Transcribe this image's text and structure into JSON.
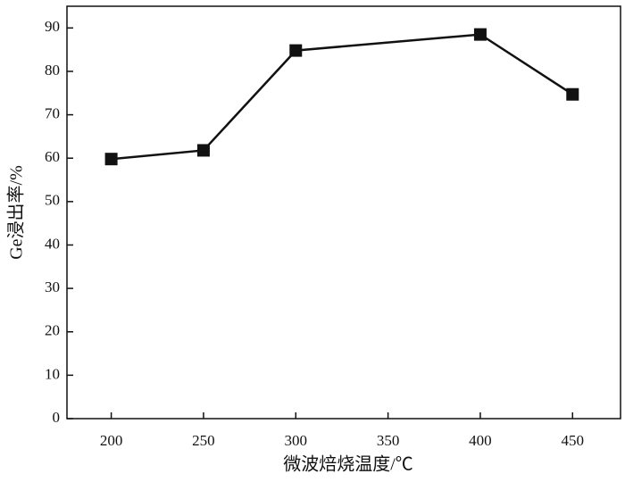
{
  "chart_data": {
    "type": "line",
    "x_label": "微波焙烧温度/℃",
    "y_label": "Ge浸出率/%",
    "x": [
      200,
      250,
      300,
      400,
      450
    ],
    "series": [
      {
        "color": "#111111",
        "values": [
          59.8,
          61.8,
          84.8,
          88.5,
          74.7
        ]
      }
    ],
    "xlim": [
      176,
      476
    ],
    "xticks": [
      200,
      250,
      300,
      350,
      400,
      450
    ],
    "ylim": [
      0,
      95
    ],
    "yticks": [
      0,
      10,
      20,
      30,
      40,
      50,
      60,
      70,
      80,
      90
    ]
  }
}
